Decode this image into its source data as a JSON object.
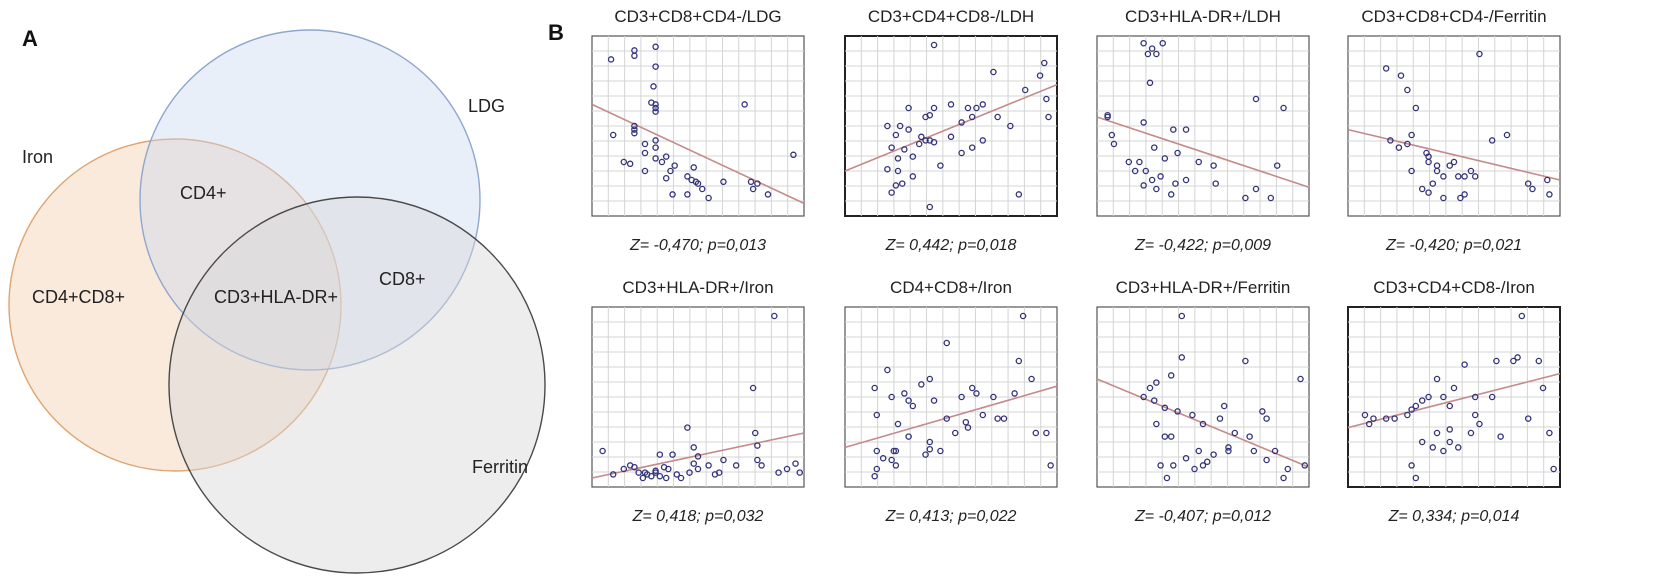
{
  "panels": {
    "a_label": "A",
    "b_label": "B"
  },
  "venn": {
    "sets": [
      "Iron",
      "LDG",
      "Ferritin"
    ],
    "regions": {
      "iron_only": "CD4+CD8+",
      "iron_ldg": "CD4+",
      "ldg_ferritin": "CD8+",
      "all_three": "CD3+HLA-DR+"
    },
    "colors": {
      "iron": "#f3c9a4",
      "ldg": "#c7d6ef",
      "ferritin": "#d6d6d6"
    }
  },
  "chart_data": [
    {
      "type": "scatter",
      "title": "CD3+CD8+CD4-/LDG",
      "stat": "Z= -0,470; p=0,013",
      "x": [
        0.09,
        0.2,
        0.2,
        0.3,
        0.3,
        0.29,
        0.28,
        0.3,
        0.3,
        0.2,
        0.1,
        0.2,
        0.3,
        0.3,
        0.25,
        0.3,
        0.35,
        0.39,
        0.37,
        0.45,
        0.5,
        0.55,
        0.45,
        0.35,
        0.25,
        0.15,
        0.18,
        0.25,
        0.33,
        0.38,
        0.47,
        0.48,
        0.49,
        0.52,
        0.62,
        0.72,
        0.75,
        0.78,
        0.76,
        0.83,
        0.95,
        0.2,
        0.3
      ],
      "y": [
        0.87,
        0.89,
        0.92,
        0.94,
        0.83,
        0.72,
        0.63,
        0.6,
        0.58,
        0.5,
        0.45,
        0.48,
        0.42,
        0.38,
        0.4,
        0.32,
        0.33,
        0.28,
        0.25,
        0.22,
        0.18,
        0.1,
        0.12,
        0.21,
        0.25,
        0.3,
        0.29,
        0.35,
        0.3,
        0.12,
        0.2,
        0.27,
        0.19,
        0.15,
        0.19,
        0.62,
        0.19,
        0.18,
        0.15,
        0.12,
        0.34,
        0.46,
        0.62
      ],
      "fit": [
        0.62,
        0.07
      ],
      "xlim": [
        0,
        1
      ],
      "ylim": [
        0,
        1
      ]
    },
    {
      "type": "scatter",
      "title": "CD3+CD4+CD8-/LDH",
      "stat": "Z= 0,442; p=0,018",
      "x": [
        0.42,
        0.2,
        0.26,
        0.3,
        0.24,
        0.36,
        0.4,
        0.42,
        0.35,
        0.38,
        0.32,
        0.32,
        0.22,
        0.28,
        0.25,
        0.2,
        0.25,
        0.24,
        0.22,
        0.27,
        0.4,
        0.45,
        0.55,
        0.6,
        0.62,
        0.65,
        0.7,
        0.72,
        0.65,
        0.55,
        0.5,
        0.4,
        0.42,
        0.5,
        0.58,
        0.78,
        0.82,
        0.85,
        0.92,
        0.94,
        0.95,
        0.96,
        0.6,
        0.3,
        0.38
      ],
      "y": [
        0.95,
        0.5,
        0.5,
        0.48,
        0.45,
        0.44,
        0.42,
        0.41,
        0.4,
        0.55,
        0.33,
        0.22,
        0.38,
        0.37,
        0.32,
        0.26,
        0.25,
        0.17,
        0.13,
        0.18,
        0.05,
        0.28,
        0.35,
        0.55,
        0.6,
        0.62,
        0.8,
        0.55,
        0.42,
        0.52,
        0.44,
        0.56,
        0.6,
        0.62,
        0.6,
        0.5,
        0.12,
        0.7,
        0.78,
        0.85,
        0.65,
        0.55,
        0.38,
        0.6,
        0.42
      ],
      "fit": [
        0.25,
        0.73
      ],
      "xlim": [
        0,
        1
      ],
      "ylim": [
        0,
        1
      ]
    },
    {
      "type": "scatter",
      "title": "CD3+HLA-DR+/LDH",
      "stat": "Z= -0,422; p=0,009",
      "x": [
        0.22,
        0.26,
        0.31,
        0.24,
        0.28,
        0.05,
        0.05,
        0.07,
        0.22,
        0.08,
        0.15,
        0.18,
        0.2,
        0.23,
        0.26,
        0.32,
        0.37,
        0.42,
        0.48,
        0.55,
        0.56,
        0.7,
        0.75,
        0.82,
        0.85,
        0.88,
        0.75,
        0.42,
        0.36,
        0.35,
        0.28,
        0.22,
        0.3,
        0.38,
        0.27,
        0.25
      ],
      "y": [
        0.96,
        0.93,
        0.96,
        0.9,
        0.9,
        0.55,
        0.56,
        0.45,
        0.52,
        0.4,
        0.3,
        0.25,
        0.3,
        0.25,
        0.2,
        0.32,
        0.18,
        0.2,
        0.3,
        0.28,
        0.18,
        0.1,
        0.15,
        0.1,
        0.28,
        0.6,
        0.65,
        0.48,
        0.48,
        0.12,
        0.15,
        0.17,
        0.22,
        0.35,
        0.38,
        0.74
      ],
      "fit": [
        0.55,
        0.16
      ],
      "xlim": [
        0,
        1
      ],
      "ylim": [
        0,
        1
      ]
    },
    {
      "type": "scatter",
      "title": "CD3+CD8+CD4-/Ferritin",
      "stat": "Z= -0,420; p=0,021",
      "x": [
        0.18,
        0.25,
        0.28,
        0.32,
        0.3,
        0.2,
        0.24,
        0.28,
        0.37,
        0.38,
        0.42,
        0.45,
        0.48,
        0.5,
        0.6,
        0.62,
        0.55,
        0.53,
        0.45,
        0.38,
        0.35,
        0.3,
        0.38,
        0.42,
        0.52,
        0.68,
        0.75,
        0.85,
        0.87,
        0.95,
        0.94,
        0.55,
        0.4,
        0.58
      ],
      "y": [
        0.82,
        0.78,
        0.7,
        0.6,
        0.45,
        0.42,
        0.38,
        0.4,
        0.35,
        0.3,
        0.25,
        0.22,
        0.28,
        0.3,
        0.22,
        0.9,
        0.12,
        0.1,
        0.1,
        0.13,
        0.15,
        0.25,
        0.33,
        0.28,
        0.22,
        0.42,
        0.45,
        0.18,
        0.15,
        0.12,
        0.2,
        0.22,
        0.18,
        0.25
      ],
      "fit": [
        0.48,
        0.2
      ],
      "xlim": [
        0,
        1
      ],
      "ylim": [
        0,
        1
      ]
    },
    {
      "type": "scatter",
      "title": "CD3+HLA-DR+/Iron",
      "stat": "Z= 0,418; p=0,032",
      "x": [
        0.86,
        0.76,
        0.77,
        0.78,
        0.6,
        0.48,
        0.32,
        0.3,
        0.32,
        0.35,
        0.36,
        0.34,
        0.4,
        0.42,
        0.46,
        0.5,
        0.55,
        0.58,
        0.62,
        0.68,
        0.78,
        0.8,
        0.88,
        0.92,
        0.96,
        0.98,
        0.45,
        0.38,
        0.15,
        0.18,
        0.1,
        0.05,
        0.25,
        0.28,
        0.24,
        0.26,
        0.3,
        0.22,
        0.2,
        0.48,
        0.5
      ],
      "y": [
        0.95,
        0.55,
        0.3,
        0.23,
        0.08,
        0.22,
        0.18,
        0.08,
        0.06,
        0.05,
        0.1,
        0.11,
        0.07,
        0.05,
        0.08,
        0.1,
        0.12,
        0.07,
        0.15,
        0.12,
        0.15,
        0.12,
        0.08,
        0.1,
        0.13,
        0.08,
        0.33,
        0.18,
        0.1,
        0.12,
        0.07,
        0.2,
        0.08,
        0.06,
        0.05,
        0.07,
        0.09,
        0.08,
        0.11,
        0.13,
        0.17
      ],
      "fit": [
        0.05,
        0.3
      ],
      "xlim": [
        0,
        1
      ],
      "ylim": [
        0,
        1
      ]
    },
    {
      "type": "scatter",
      "title": "CD4+CD8+/Iron",
      "stat": "Z= 0,413; p=0,022",
      "x": [
        0.84,
        0.48,
        0.2,
        0.14,
        0.15,
        0.3,
        0.25,
        0.23,
        0.22,
        0.24,
        0.38,
        0.4,
        0.45,
        0.52,
        0.58,
        0.6,
        0.72,
        0.75,
        0.82,
        0.9,
        0.95,
        0.97,
        0.65,
        0.57,
        0.48,
        0.42,
        0.36,
        0.32,
        0.28,
        0.22,
        0.15,
        0.14,
        0.18,
        0.24,
        0.3,
        0.4,
        0.55,
        0.62,
        0.7,
        0.8,
        0.88,
        0.15,
        0.4
      ],
      "y": [
        0.95,
        0.8,
        0.65,
        0.55,
        0.4,
        0.48,
        0.35,
        0.2,
        0.15,
        0.12,
        0.18,
        0.21,
        0.2,
        0.3,
        0.33,
        0.55,
        0.38,
        0.38,
        0.7,
        0.3,
        0.3,
        0.12,
        0.4,
        0.36,
        0.38,
        0.48,
        0.57,
        0.45,
        0.52,
        0.5,
        0.1,
        0.06,
        0.16,
        0.2,
        0.28,
        0.6,
        0.5,
        0.52,
        0.5,
        0.52,
        0.6,
        0.2,
        0.25
      ],
      "fit": [
        0.22,
        0.56
      ],
      "xlim": [
        0,
        1
      ],
      "ylim": [
        0,
        1
      ]
    },
    {
      "type": "scatter",
      "title": "CD3+HLA-DR+/Ferritin",
      "stat": "Z= -0,407; p=0,012",
      "x": [
        0.4,
        0.4,
        0.35,
        0.28,
        0.25,
        0.22,
        0.27,
        0.32,
        0.38,
        0.45,
        0.5,
        0.58,
        0.7,
        0.65,
        0.78,
        0.84,
        0.9,
        0.96,
        0.98,
        0.88,
        0.74,
        0.8,
        0.62,
        0.55,
        0.5,
        0.46,
        0.42,
        0.36,
        0.3,
        0.33,
        0.48,
        0.52,
        0.62,
        0.72,
        0.8,
        0.6,
        0.35,
        0.32,
        0.28
      ],
      "y": [
        0.95,
        0.72,
        0.62,
        0.58,
        0.55,
        0.5,
        0.48,
        0.44,
        0.42,
        0.4,
        0.35,
        0.38,
        0.7,
        0.3,
        0.42,
        0.2,
        0.1,
        0.6,
        0.12,
        0.05,
        0.2,
        0.38,
        0.2,
        0.18,
        0.12,
        0.1,
        0.16,
        0.12,
        0.12,
        0.05,
        0.2,
        0.14,
        0.22,
        0.28,
        0.15,
        0.45,
        0.28,
        0.28,
        0.35
      ],
      "fit": [
        0.6,
        0.11
      ],
      "xlim": [
        0,
        1
      ],
      "ylim": [
        0,
        1
      ]
    },
    {
      "type": "scatter",
      "title": "CD3+CD4+CD8-/Iron",
      "stat": "Z= 0,334; p=0,014",
      "x": [
        0.82,
        0.7,
        0.8,
        0.78,
        0.55,
        0.6,
        0.42,
        0.45,
        0.5,
        0.48,
        0.38,
        0.35,
        0.32,
        0.3,
        0.28,
        0.22,
        0.18,
        0.12,
        0.1,
        0.08,
        0.35,
        0.4,
        0.45,
        0.52,
        0.58,
        0.62,
        0.68,
        0.72,
        0.85,
        0.92,
        0.95,
        0.97,
        0.9,
        0.6,
        0.48,
        0.32,
        0.3,
        0.42,
        0.48
      ],
      "y": [
        0.95,
        0.7,
        0.72,
        0.7,
        0.68,
        0.5,
        0.6,
        0.5,
        0.55,
        0.45,
        0.5,
        0.48,
        0.45,
        0.43,
        0.4,
        0.38,
        0.38,
        0.38,
        0.35,
        0.4,
        0.25,
        0.22,
        0.2,
        0.22,
        0.3,
        0.35,
        0.5,
        0.28,
        0.38,
        0.55,
        0.3,
        0.1,
        0.7,
        0.4,
        0.32,
        0.05,
        0.12,
        0.3,
        0.25
      ],
      "fit": [
        0.33,
        0.63
      ],
      "xlim": [
        0,
        1
      ],
      "ylim": [
        0,
        1
      ]
    }
  ]
}
